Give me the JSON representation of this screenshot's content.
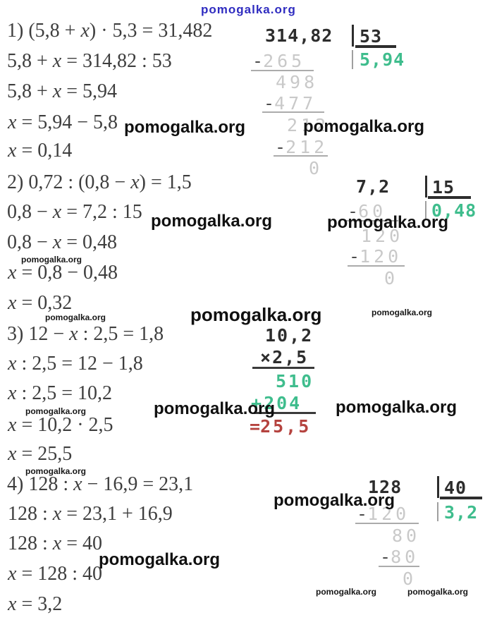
{
  "watermark": {
    "text": "pomogalka.org",
    "top_color": "#2f2cc0",
    "body_color": "#101010"
  },
  "colors": {
    "equation_text": "#3e3e3e",
    "division_strong": "#2d2d2d",
    "division_light": "#c9c9c9",
    "quotient_green": "#3fbd8d",
    "result_red": "#b5433f"
  },
  "problems": [
    {
      "lines": [
        "1) (5,8 + x) · 5,3 = 31,482",
        "5,8 + x = 314,82 : 53",
        "5,8 + x = 5,94",
        "x = 5,94 − 5,8",
        "x = 0,14"
      ]
    },
    {
      "lines": [
        "2) 0,72 : (0,8 − x) = 1,5",
        "0,8 − x = 7,2 : 15",
        "0,8 − x = 0,48",
        "x = 0,8 − 0,48",
        "x = 0,32"
      ]
    },
    {
      "lines": [
        "3) 12 − x : 2,5 = 1,8",
        "x : 2,5 = 12 − 1,8",
        "x : 2,5 = 10,2",
        "x = 10,2 · 2,5",
        "x = 25,5"
      ]
    },
    {
      "lines": [
        "4) 128 : x − 16,9 = 23,1",
        "128 : x = 23,1 + 16,9",
        "128 : x = 40",
        "x = 128 : 40",
        "x = 3,2"
      ]
    }
  ],
  "divisions": [
    {
      "dividend": "314,82",
      "divisor": "53",
      "quotient": "5,94",
      "steps": [
        {
          "sign": "-",
          "value": "265"
        },
        {
          "sign": "",
          "value": "498"
        },
        {
          "sign": "-",
          "value": "477"
        },
        {
          "sign": "",
          "value": "212"
        },
        {
          "sign": "-",
          "value": "212"
        },
        {
          "sign": "",
          "value": "0"
        }
      ]
    },
    {
      "dividend": "7,2",
      "divisor": "15",
      "quotient": "0,48",
      "steps": [
        {
          "sign": "-",
          "value": "60"
        },
        {
          "sign": "",
          "value": "120"
        },
        {
          "sign": "-",
          "value": "120"
        },
        {
          "sign": "",
          "value": "0"
        }
      ]
    },
    {
      "dividend": "128",
      "divisor": "40",
      "quotient": "3,2",
      "steps": [
        {
          "sign": "-",
          "value": "120"
        },
        {
          "sign": "",
          "value": "80"
        },
        {
          "sign": "-",
          "value": "80"
        },
        {
          "sign": "",
          "value": "0"
        }
      ]
    }
  ],
  "multiplication": {
    "factor1": "10,2",
    "factor2_sign": "×",
    "factor2": "2,5",
    "partial1": "510",
    "partial2_sign": "+",
    "partial2": "204",
    "result_sign": "=",
    "result": "25,5"
  }
}
